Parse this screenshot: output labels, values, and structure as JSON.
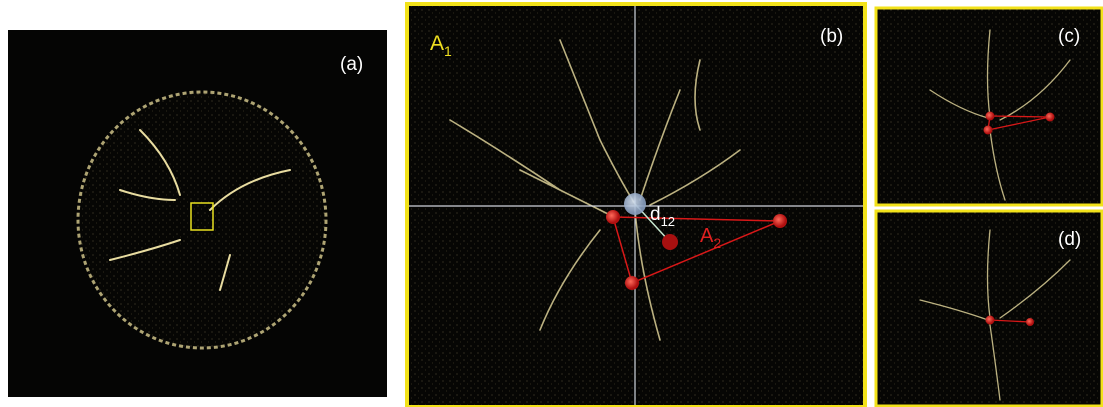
{
  "panels": [
    {
      "label": "(a)"
    },
    {
      "label": "(b)",
      "annotations": {
        "area_1": {
          "text": "A",
          "subscript": "1"
        },
        "distance": {
          "text": "d",
          "subscript": "12"
        },
        "area_2": {
          "text": "A",
          "subscript": "2"
        }
      }
    },
    {
      "label": "(c)"
    },
    {
      "label": "(d)"
    }
  ]
}
